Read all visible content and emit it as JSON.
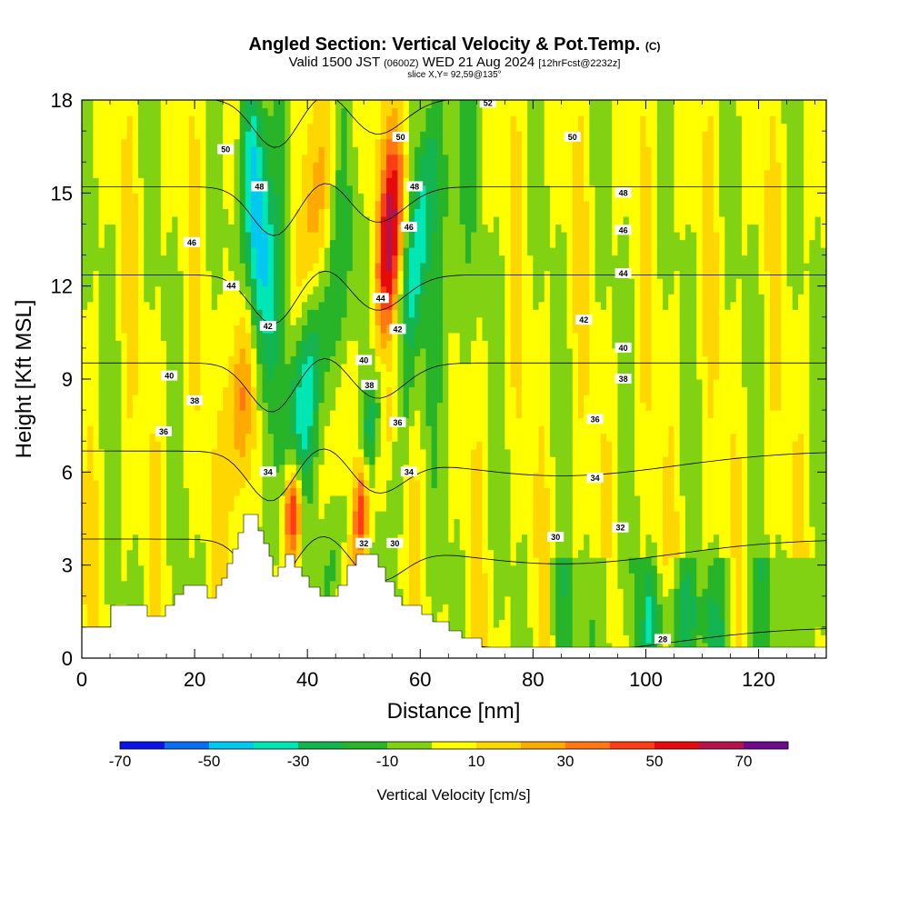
{
  "title": {
    "main": "Angled Section: Vertical Velocity & Pot.Temp.",
    "main_units": "(C)",
    "valid_part1": "Valid 1500 JST",
    "valid_utc": "(0600Z)",
    "valid_part2": "WED 21 Aug 2024",
    "forecast": "[12hrFcst@2232z]",
    "slice": "slice X,Y= 92,59@135°"
  },
  "chart_data": {
    "type": "heatmap",
    "xlabel": "Distance [nm]",
    "ylabel": "Height [Kft MSL]",
    "xlim": [
      0,
      132
    ],
    "ylim": [
      0,
      18
    ],
    "xticks": [
      0,
      20,
      40,
      60,
      80,
      100,
      120
    ],
    "yticks": [
      0,
      3,
      6,
      9,
      12,
      15,
      18
    ],
    "fill_variable": "Vertical Velocity [cm/s]",
    "colorbar": {
      "title": "Vertical Velocity [cm/s]",
      "tick_labels": [
        "-70",
        "-50",
        "-30",
        "-10",
        "10",
        "30",
        "50",
        "70"
      ],
      "tick_values": [
        -70,
        -50,
        -30,
        -10,
        10,
        30,
        50,
        70
      ],
      "bounds": [
        -70,
        80
      ],
      "interval": 10,
      "colors": [
        "#0a14e6",
        "#0a6ef0",
        "#00c8f0",
        "#00e6b4",
        "#14b450",
        "#28b428",
        "#82d214",
        "#ffff00",
        "#ffd700",
        "#ffaa00",
        "#ff7814",
        "#ff3c14",
        "#e60a0a",
        "#b4144b",
        "#6e0a8c"
      ]
    },
    "contour_variable": "Pot.Temp. (C)",
    "contour_levels": [
      28,
      30,
      32,
      34,
      36,
      38,
      40,
      42,
      44,
      46,
      48,
      50,
      52
    ],
    "contour_labels": [
      {
        "text": "50",
        "x": 25.5,
        "y": 16.4
      },
      {
        "text": "48",
        "x": 31.5,
        "y": 15.2
      },
      {
        "text": "46",
        "x": 19.5,
        "y": 13.4
      },
      {
        "text": "44",
        "x": 26.5,
        "y": 12.0
      },
      {
        "text": "42",
        "x": 33.0,
        "y": 10.7
      },
      {
        "text": "40",
        "x": 15.5,
        "y": 9.1
      },
      {
        "text": "38",
        "x": 20.0,
        "y": 8.3
      },
      {
        "text": "36",
        "x": 14.5,
        "y": 7.3
      },
      {
        "text": "34",
        "x": 33.0,
        "y": 6.0
      },
      {
        "text": "52",
        "x": 72.0,
        "y": 17.9
      },
      {
        "text": "50",
        "x": 56.5,
        "y": 16.8
      },
      {
        "text": "48",
        "x": 59.0,
        "y": 15.2
      },
      {
        "text": "46",
        "x": 58.0,
        "y": 13.9
      },
      {
        "text": "44",
        "x": 53.0,
        "y": 11.6
      },
      {
        "text": "42",
        "x": 56.0,
        "y": 10.6
      },
      {
        "text": "40",
        "x": 50.0,
        "y": 9.6
      },
      {
        "text": "38",
        "x": 51.0,
        "y": 8.8
      },
      {
        "text": "36",
        "x": 56.0,
        "y": 7.6
      },
      {
        "text": "34",
        "x": 58.0,
        "y": 6.0
      },
      {
        "text": "32",
        "x": 50.0,
        "y": 3.7
      },
      {
        "text": "30",
        "x": 55.5,
        "y": 3.7
      },
      {
        "text": "50",
        "x": 87.0,
        "y": 16.8
      },
      {
        "text": "48",
        "x": 96.0,
        "y": 15.0
      },
      {
        "text": "46",
        "x": 96.0,
        "y": 13.8
      },
      {
        "text": "44",
        "x": 96.0,
        "y": 12.4
      },
      {
        "text": "42",
        "x": 89.0,
        "y": 10.9
      },
      {
        "text": "40",
        "x": 96.0,
        "y": 10.0
      },
      {
        "text": "38",
        "x": 96.0,
        "y": 9.0
      },
      {
        "text": "36",
        "x": 91.0,
        "y": 7.7
      },
      {
        "text": "34",
        "x": 91.0,
        "y": 5.8
      },
      {
        "text": "32",
        "x": 95.5,
        "y": 4.2
      },
      {
        "text": "30",
        "x": 84.0,
        "y": 3.9
      },
      {
        "text": "28",
        "x": 103.0,
        "y": 0.6
      }
    ]
  }
}
